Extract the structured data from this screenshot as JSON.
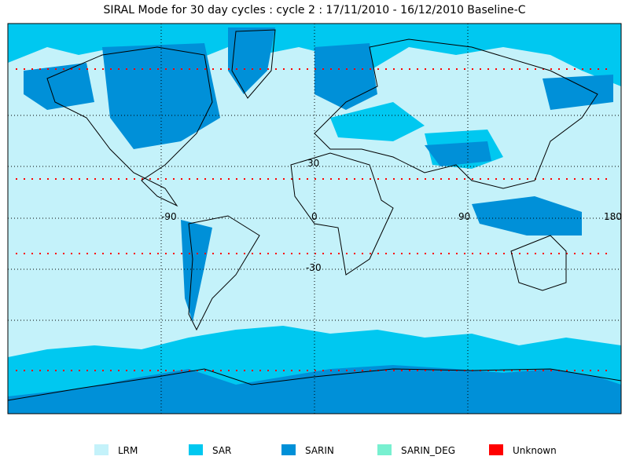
{
  "title": "SIRAL Mode for 30 day cycles : cycle 2 : 17/11/2010 - 16/12/2010 Baseline-C",
  "map": {
    "lat_labels": [
      "30",
      "-30"
    ],
    "lon_labels": [
      "-90",
      "0",
      "90",
      "180"
    ]
  },
  "legend": {
    "items": [
      {
        "label": "LRM",
        "color": "#c4f2fa"
      },
      {
        "label": "SAR",
        "color": "#00c8f0"
      },
      {
        "label": "SARIN",
        "color": "#0090d8"
      },
      {
        "label": "SARIN_DEG",
        "color": "#78f0d0"
      },
      {
        "label": "Unknown",
        "color": "#ff0000"
      }
    ]
  }
}
